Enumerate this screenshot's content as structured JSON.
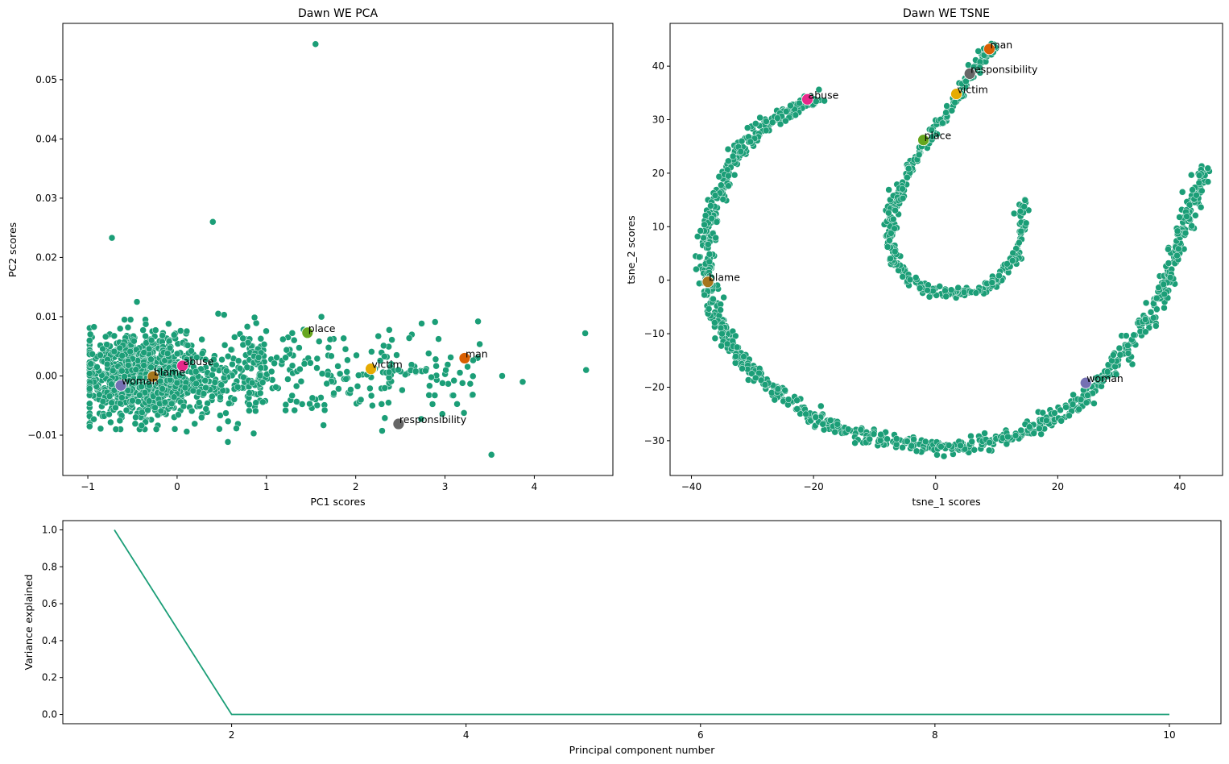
{
  "colors": {
    "base": "#1b9e77",
    "highlight": {
      "man": "#d95f02",
      "responsibility": "#666666",
      "victim": "#e6ab02",
      "place": "#66a61e",
      "abuse": "#e7298a",
      "blame": "#a6761d",
      "woman": "#7570b3"
    }
  },
  "chart_data": [
    {
      "type": "scatter",
      "title": "Dawn WE PCA",
      "xlabel": "PC1 scores",
      "ylabel": "PC2 scores",
      "xlim": [
        -1.28,
        4.88
      ],
      "ylim": [
        -0.0168,
        0.0595
      ],
      "xticks": [
        -1,
        0,
        1,
        2,
        3,
        4
      ],
      "yticks": [
        -0.01,
        0.0,
        0.01,
        0.02,
        0.03,
        0.04,
        0.05
      ],
      "ytick_labels": [
        "−0.01",
        "0.00",
        "0.01",
        "0.02",
        "0.03",
        "0.04",
        "0.05"
      ],
      "xtick_labels": [
        "−1",
        "0",
        "1",
        "2",
        "3",
        "4"
      ],
      "outliers": [
        [
          1.55,
          0.056
        ],
        [
          0.4,
          0.026
        ],
        [
          -0.73,
          0.0233
        ],
        [
          4.57,
          0.0072
        ],
        [
          4.58,
          0.001
        ],
        [
          3.52,
          -0.0133
        ],
        [
          3.87,
          -0.001
        ],
        [
          3.64,
          0.0
        ],
        [
          3.37,
          0.0092
        ],
        [
          -0.45,
          0.0125
        ],
        [
          0.46,
          0.0105
        ]
      ],
      "highlighted": [
        {
          "label": "man",
          "x": 3.22,
          "y": 0.003
        },
        {
          "label": "responsibility",
          "x": 2.48,
          "y": -0.0081
        },
        {
          "label": "victim",
          "x": 2.17,
          "y": 0.0012
        },
        {
          "label": "place",
          "x": 1.46,
          "y": 0.0073
        },
        {
          "label": "abuse",
          "x": 0.06,
          "y": 0.0017
        },
        {
          "label": "blame",
          "x": -0.27,
          "y": -0.0001
        },
        {
          "label": "woman",
          "x": -0.63,
          "y": -0.0016
        }
      ]
    },
    {
      "type": "scatter",
      "title": "Dawn WE TSNE",
      "xlabel": "tsne_1 scores",
      "ylabel": "tsne_2 scores",
      "xlim": [
        -43.5,
        47.0
      ],
      "ylim": [
        -36.5,
        48.0
      ],
      "xticks": [
        -40,
        -20,
        0,
        20,
        40
      ],
      "xtick_labels": [
        "−40",
        "−20",
        "0",
        "20",
        "40"
      ],
      "yticks": [
        -30,
        -20,
        -10,
        0,
        10,
        20,
        30,
        40
      ],
      "ytick_labels": [
        "−30",
        "−20",
        "−10",
        "0",
        "10",
        "20",
        "30",
        "40"
      ],
      "highlighted": [
        {
          "label": "man",
          "x": 8.8,
          "y": 43.2
        },
        {
          "label": "responsibility",
          "x": 5.6,
          "y": 38.6
        },
        {
          "label": "victim",
          "x": 3.4,
          "y": 34.8
        },
        {
          "label": "place",
          "x": -2.0,
          "y": 26.2
        },
        {
          "label": "abuse",
          "x": -21.0,
          "y": 33.8
        },
        {
          "label": "blame",
          "x": -37.3,
          "y": -0.3
        },
        {
          "label": "woman",
          "x": 24.6,
          "y": -19.2
        }
      ]
    },
    {
      "type": "line",
      "title": "",
      "xlabel": "Principal component number",
      "ylabel": "Variance explained",
      "xlim": [
        0.56,
        10.44
      ],
      "ylim": [
        -0.05,
        1.05
      ],
      "xticks": [
        2,
        4,
        6,
        8,
        10
      ],
      "xtick_labels": [
        "2",
        "4",
        "6",
        "8",
        "10"
      ],
      "yticks": [
        0.0,
        0.2,
        0.4,
        0.6,
        0.8,
        1.0
      ],
      "ytick_labels": [
        "0.0",
        "0.2",
        "0.4",
        "0.6",
        "0.8",
        "1.0"
      ],
      "x": [
        1,
        2,
        3,
        4,
        5,
        6,
        7,
        8,
        9,
        10
      ],
      "values": [
        1.0,
        0.0,
        0.0,
        0.0,
        0.0,
        0.0,
        0.0,
        0.0,
        0.0,
        0.0
      ]
    }
  ]
}
